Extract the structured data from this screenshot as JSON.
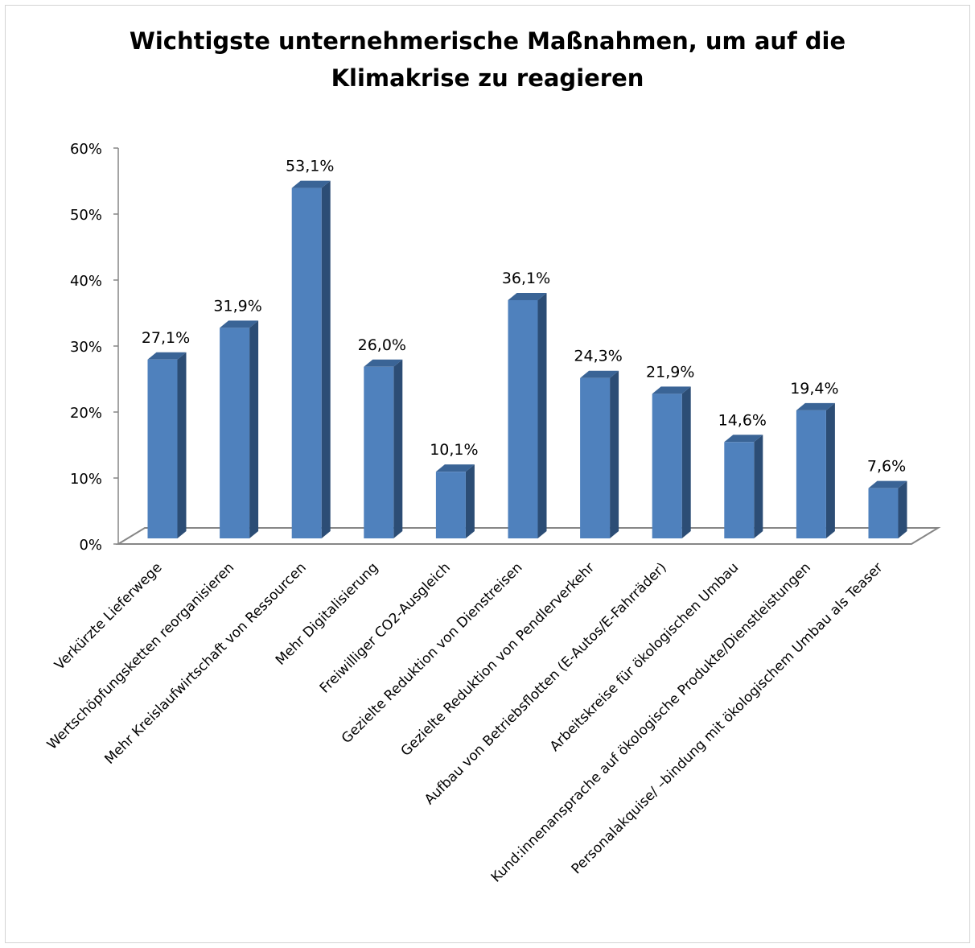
{
  "chart_data": {
    "type": "bar",
    "title_lines": [
      "Wichtigste unternehmerische Maßnahmen, um auf die",
      "Klimakrise zu reagieren"
    ],
    "categories": [
      "Verkürzte Lieferwege",
      "Wertschöpfungsketten reorganisieren",
      "Mehr Kreislaufwirtschaft von Ressourcen",
      "Mehr Digitalisierung",
      "Freiwilliger CO2-Ausgleich",
      "Gezielte Reduktion von Dienstreisen",
      "Gezielte Reduktion von Pendlerverkehr",
      "Aufbau von Betriebsflotten (E-Autos/E-Fahrräder)",
      "Arbeitskreise für ökologischen Umbau",
      "Kund:innenansprache auf ökologische Produkte/Dienstleistungen",
      "Personalakquise/ –bindung mit ökologischem Umbau als Teaser"
    ],
    "values": [
      27.1,
      31.9,
      53.1,
      26.0,
      10.1,
      36.1,
      24.3,
      21.9,
      14.6,
      19.4,
      7.6
    ],
    "value_labels": [
      "27,1%",
      "31,9%",
      "53,1%",
      "26,0%",
      "10,1%",
      "36,1%",
      "24,3%",
      "21,9%",
      "14,6%",
      "19,4%",
      "7,6%"
    ],
    "y_ticks": [
      0,
      10,
      20,
      30,
      40,
      50,
      60
    ],
    "y_tick_labels": [
      "0%",
      "10%",
      "20%",
      "30%",
      "40%",
      "50%",
      "60%"
    ],
    "ylim": [
      0,
      60
    ],
    "grid": false,
    "legend": "none",
    "style": "3d-column",
    "colors": {
      "bar_front": "#4f81bd",
      "bar_side": "#2c4d75",
      "bar_top": "#3a6496",
      "axis": "#868686"
    }
  }
}
